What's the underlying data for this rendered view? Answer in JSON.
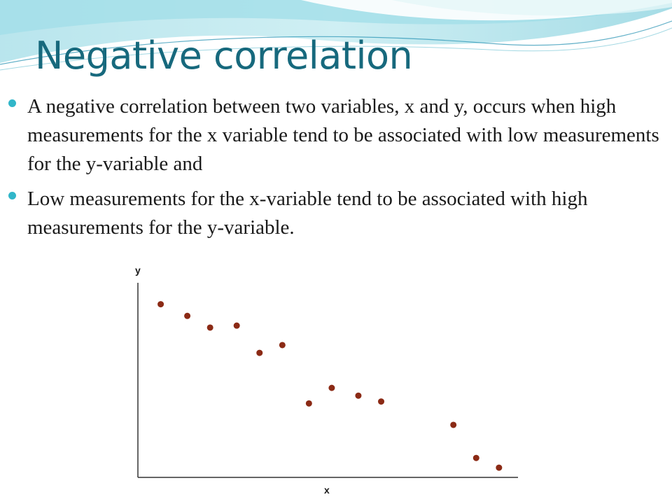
{
  "slide": {
    "title": "Negative correlation",
    "bullets": [
      "A negative correlation between two variables, x and y, occurs when high measurements for the x variable tend to be associated with low measurements for the y-variable and",
      "Low measurements for the x-variable tend to be associated with high measurements for the y-variable."
    ]
  },
  "colors": {
    "title": "#17697d",
    "bullet_marker": "#31b6c9",
    "point": "#8b2a15"
  },
  "chart_data": {
    "type": "scatter",
    "xlabel": "x",
    "ylabel": "y",
    "grid": false,
    "xlim": [
      0,
      100
    ],
    "ylim": [
      0,
      100
    ],
    "points": [
      {
        "x": 6,
        "y": 89
      },
      {
        "x": 13,
        "y": 83
      },
      {
        "x": 19,
        "y": 77
      },
      {
        "x": 26,
        "y": 78
      },
      {
        "x": 32,
        "y": 64
      },
      {
        "x": 38,
        "y": 68
      },
      {
        "x": 45,
        "y": 38
      },
      {
        "x": 51,
        "y": 46
      },
      {
        "x": 58,
        "y": 42
      },
      {
        "x": 64,
        "y": 39
      },
      {
        "x": 83,
        "y": 27
      },
      {
        "x": 89,
        "y": 10
      },
      {
        "x": 95,
        "y": 5
      }
    ]
  }
}
